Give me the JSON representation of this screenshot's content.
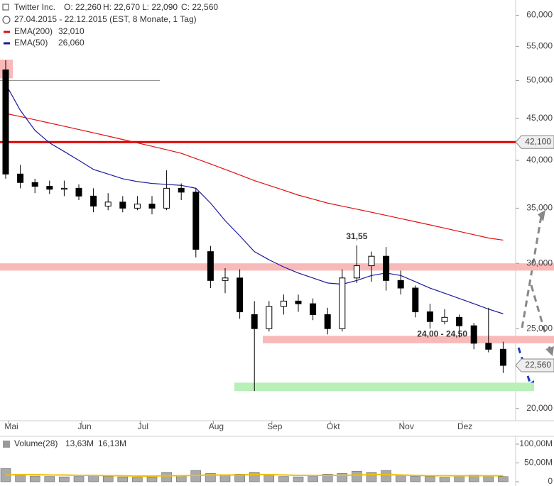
{
  "chart_data": {
    "type": "candlestick",
    "title": "Twitter Inc.",
    "ohlc_labels": [
      "O: 22,260",
      "H: 22,670",
      "L: 22,090",
      "C: 22,560"
    ],
    "subtitle": "27.04.2015 - 22.12.2015 (EST, 8 Monate, 1 Tag)",
    "log_scale": true,
    "categories": [
      "Mai",
      null,
      null,
      null,
      null,
      "Jun",
      null,
      null,
      null,
      "Jul",
      null,
      null,
      null,
      null,
      "Aug",
      null,
      null,
      null,
      "Sep",
      null,
      null,
      null,
      "Okt",
      null,
      null,
      null,
      null,
      "Nov",
      null,
      null,
      null,
      "Dez",
      null,
      null,
      null
    ],
    "open": [
      51.5,
      38.5,
      37.6,
      37.2,
      36.9,
      37.0,
      36.2,
      35.2,
      35.6,
      35.0,
      35.4,
      35.0,
      37.0,
      36.6,
      31.0,
      28.6,
      28.8,
      26.0,
      25.0,
      26.6,
      27.0,
      26.8,
      26.0,
      25.0,
      28.8,
      29.8,
      30.6,
      28.6,
      28.0,
      26.2,
      25.5,
      25.8,
      25.2,
      24.0,
      23.6
    ],
    "high": [
      52.9,
      39.5,
      38.0,
      37.8,
      37.8,
      37.4,
      37.0,
      36.5,
      36.2,
      36.2,
      36.2,
      38.9,
      37.5,
      37.0,
      31.5,
      29.6,
      29.5,
      27.0,
      27.0,
      27.5,
      27.5,
      27.2,
      26.5,
      29.5,
      31.55,
      31.0,
      31.4,
      29.4,
      28.2,
      26.8,
      26.4,
      26.0,
      25.4,
      26.5,
      24.1
    ],
    "low": [
      38.0,
      37.0,
      36.5,
      36.4,
      36.2,
      35.8,
      34.6,
      34.8,
      34.6,
      34.8,
      34.4,
      34.8,
      35.8,
      30.5,
      28.0,
      27.6,
      25.7,
      21.0,
      24.8,
      26.0,
      26.2,
      25.6,
      24.6,
      24.8,
      28.4,
      28.5,
      27.8,
      27.5,
      25.8,
      25.0,
      25.3,
      24.4,
      23.6,
      23.4,
      22.09
    ],
    "close": [
      38.5,
      37.6,
      37.2,
      36.9,
      37.0,
      36.2,
      35.2,
      35.6,
      35.0,
      35.4,
      35.0,
      37.0,
      36.6,
      31.2,
      28.6,
      28.8,
      26.2,
      25.0,
      26.6,
      27.0,
      26.8,
      26.0,
      25.0,
      28.8,
      29.8,
      30.6,
      28.6,
      28.0,
      26.2,
      25.5,
      25.8,
      25.2,
      24.0,
      23.6,
      22.56
    ],
    "series": [
      {
        "name": "EMA(200)",
        "value_label": "32,010",
        "color": "#e01010",
        "values": [
          45.6,
          45.2,
          44.8,
          44.4,
          44.0,
          43.6,
          43.2,
          42.8,
          42.4,
          42.0,
          41.6,
          41.2,
          40.8,
          40.2,
          39.6,
          39.0,
          38.4,
          37.8,
          37.3,
          36.8,
          36.3,
          35.9,
          35.5,
          35.2,
          34.9,
          34.6,
          34.3,
          34.0,
          33.7,
          33.4,
          33.1,
          32.8,
          32.5,
          32.2,
          32.01
        ]
      },
      {
        "name": "EMA(50)",
        "value_label": "26,060",
        "color": "#1a1aa0",
        "values": [
          49.5,
          46.0,
          43.5,
          42.0,
          41.0,
          40.0,
          39.0,
          38.5,
          38.0,
          37.7,
          37.5,
          37.4,
          37.3,
          37.0,
          35.5,
          33.8,
          32.4,
          31.0,
          30.3,
          29.7,
          29.2,
          28.8,
          28.4,
          28.3,
          28.6,
          29.0,
          29.2,
          29.0,
          28.5,
          28.0,
          27.6,
          27.2,
          26.8,
          26.4,
          26.06
        ]
      }
    ],
    "ylim": [
      19.33,
      62.6
    ],
    "yticks": [
      {
        "value": 20,
        "label": "20,000"
      },
      {
        "value": 25,
        "label": "25,000"
      },
      {
        "value": 30,
        "label": "30,000"
      },
      {
        "value": 35,
        "label": "35,000"
      },
      {
        "value": 40,
        "label": "40,000"
      },
      {
        "value": 45,
        "label": "45,000"
      },
      {
        "value": 50,
        "label": "50,000"
      },
      {
        "value": 55,
        "label": "55,000"
      },
      {
        "value": 60,
        "label": "60,000"
      }
    ],
    "levels": [
      {
        "value": 42.1,
        "label": "42,100",
        "color": "#e00000"
      },
      {
        "value": 50,
        "color": "#888888"
      }
    ],
    "last_price": {
      "value": 22.56,
      "label": "22,560"
    },
    "zones": [
      {
        "from": 29.4,
        "to": 30.0,
        "color": "#f9b9b9"
      },
      {
        "from": 24.0,
        "to": 24.5,
        "color": "#f9b9b9",
        "label": "24,00 - 24,50"
      },
      {
        "from": 21.0,
        "to": 21.5,
        "color": "#b8f0b8"
      },
      {
        "from": 50.3,
        "to": 53.0,
        "color": "#f9b9b9"
      }
    ],
    "annotations": [
      {
        "label": "31,55",
        "value": 31.55,
        "color": "#e00000"
      }
    ],
    "volume": {
      "name": "Volume(28)",
      "value_label": "13,63M",
      "ma_label": "16,13M",
      "color": "#aaaaaa",
      "ma_color": "#f0c000",
      "values": [
        35,
        20,
        15,
        14,
        13,
        14,
        16,
        14,
        13,
        12,
        13,
        25,
        15,
        30,
        22,
        18,
        20,
        25,
        18,
        14,
        13,
        14,
        20,
        22,
        28,
        25,
        30,
        18,
        15,
        14,
        12,
        15,
        18,
        16,
        13.63
      ],
      "ma": [
        18,
        19,
        19,
        18,
        18,
        17,
        17,
        16,
        16,
        15,
        15,
        16,
        16,
        17,
        18,
        18,
        18,
        19,
        19,
        18,
        17,
        17,
        17,
        17,
        18,
        19,
        19,
        18,
        17,
        16,
        16,
        16,
        16,
        16,
        16.13
      ],
      "ylim": [
        0,
        100
      ],
      "yticks": [
        0,
        {
          "value": 50,
          "label": "50,00M"
        },
        {
          "value": 100,
          "label": "100,00M"
        }
      ]
    }
  }
}
